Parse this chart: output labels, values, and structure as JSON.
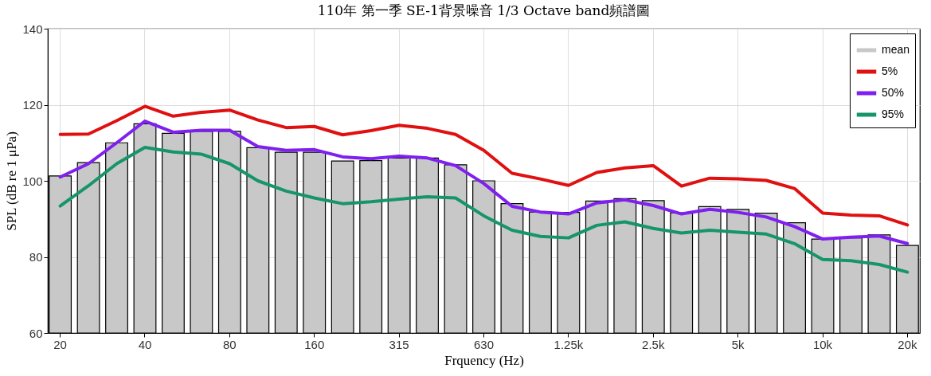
{
  "chart_data": {
    "type": "bar",
    "title": "110年 第一季 SE-1背景噪音 1/3 Octave band頻譜圖",
    "xlabel": "Frquency (Hz)",
    "ylabel": "SPL (dB re 1 μPa)",
    "categories": [
      "20",
      null,
      null,
      "40",
      null,
      null,
      "80",
      null,
      null,
      "160",
      null,
      null,
      "315",
      null,
      null,
      "630",
      null,
      null,
      "1.25k",
      null,
      null,
      "2.5k",
      null,
      null,
      "5k",
      null,
      null,
      "10k",
      null,
      null,
      "20k"
    ],
    "series": [
      {
        "name": "mean",
        "color": "#c8c8c8",
        "values": [
          101.3,
          104.8,
          110,
          115,
          112.5,
          113,
          113,
          108.7,
          107.5,
          107.5,
          105.2,
          105.3,
          106,
          106,
          104.2,
          100,
          94,
          91.8,
          91.7,
          94.7,
          95.3,
          94.8,
          91.6,
          93.2,
          92.5,
          91.5,
          89,
          84.7,
          85,
          85.8,
          83
        ]
      },
      {
        "name": "5%",
        "type": "line",
        "color": "#e01010",
        "values": [
          112.2,
          112.3,
          115.8,
          119.6,
          117,
          118,
          118.6,
          116,
          114,
          114.3,
          112.1,
          113.2,
          114.6,
          113.8,
          112.2,
          108,
          102,
          100.5,
          98.8,
          102.2,
          103.4,
          104,
          98.6,
          100.7,
          100.5,
          100.1,
          98,
          91.5,
          91,
          90.8,
          88.4
        ]
      },
      {
        "name": "50%",
        "type": "line",
        "color": "#7f1ff0",
        "values": [
          101,
          104.5,
          110,
          115.7,
          112.8,
          113.3,
          113.3,
          109,
          108,
          108.2,
          106.3,
          105.8,
          106.5,
          106,
          104,
          99.3,
          93.3,
          91.8,
          91.3,
          94.2,
          95,
          93.5,
          91.3,
          92.5,
          91.7,
          90.5,
          88,
          84.7,
          85.2,
          85.5,
          83.5
        ]
      },
      {
        "name": "95%",
        "type": "line",
        "color": "#17956a",
        "values": [
          93.4,
          98.7,
          104.5,
          108.8,
          107.6,
          107,
          104.5,
          100,
          97.3,
          95.5,
          94,
          94.5,
          95.2,
          95.8,
          95.5,
          90.8,
          87,
          85.4,
          85,
          88.3,
          89.2,
          87.5,
          86.3,
          87,
          86.5,
          86,
          83.5,
          79.3,
          79,
          78,
          76
        ]
      }
    ],
    "ylim": [
      60,
      140
    ],
    "yticks": [
      60,
      80,
      100,
      120,
      140
    ],
    "grid": true,
    "legend": "top right",
    "line_style": "solid",
    "marker": "none"
  }
}
